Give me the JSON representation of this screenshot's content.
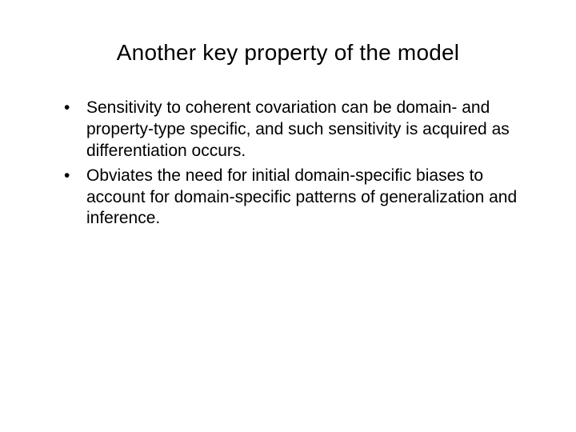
{
  "slide": {
    "title": "Another key property of the model",
    "bullets": [
      "Sensitivity to coherent covariation can be domain- and property-type specific, and such sensitivity is acquired as differentiation occurs.",
      "Obviates the need for initial domain-specific biases to account for domain-specific patterns of generalization and inference."
    ]
  },
  "style": {
    "background_color": "#ffffff",
    "text_color": "#000000",
    "title_fontsize": 28,
    "body_fontsize": 21,
    "font_family": "Verdana"
  }
}
